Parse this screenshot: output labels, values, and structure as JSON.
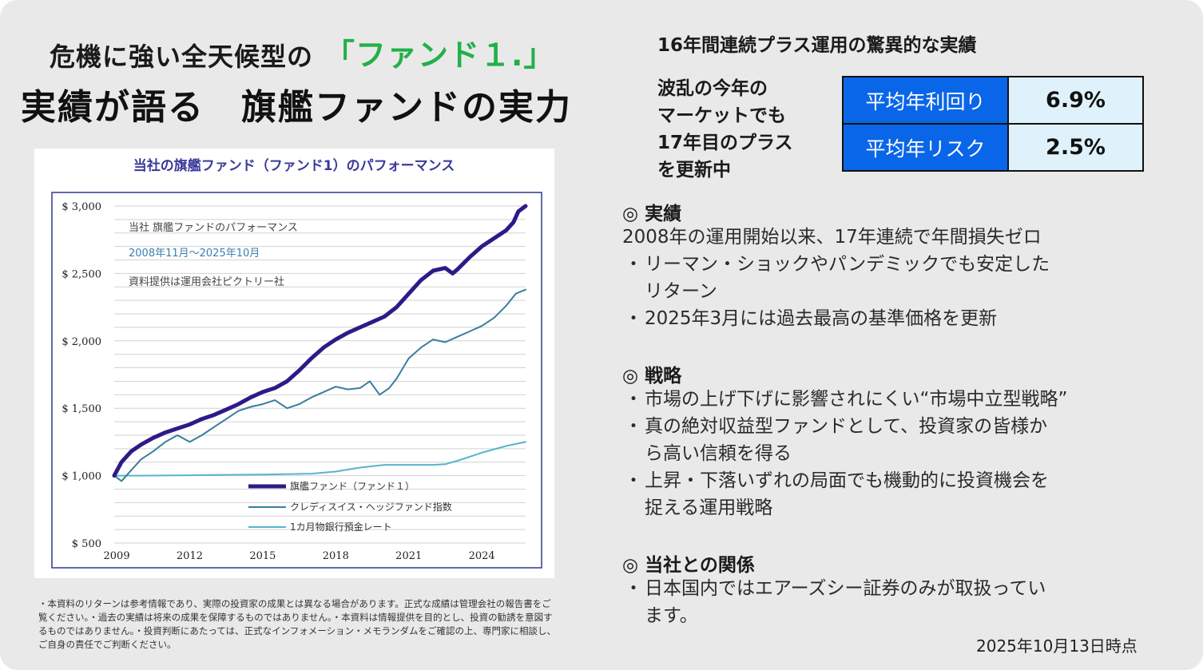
{
  "headline": {
    "line1_prefix": "危機に強い全天候型の",
    "line1_highlight": "「ファンド１.」",
    "line2": "実績が語る　旗艦ファンドの実力"
  },
  "chart_data": {
    "type": "line",
    "title": "当社の旗艦ファンド（ファンド1）のパフォーマンス",
    "annotations": [
      "当社 旗艦ファンドのパフォーマンス",
      "2008年11月～2025年10月",
      "資料提供は運用会社ピクトリー社"
    ],
    "y_ticks": [
      "$ 3,000",
      "$ 2,500",
      "$ 2,000",
      "$ 1,500",
      "$ 1,000",
      "$ 500"
    ],
    "y_tick_values": [
      3000,
      2500,
      2000,
      1500,
      1000,
      500
    ],
    "ylim": [
      500,
      3000
    ],
    "x_ticks": [
      "2009",
      "2012",
      "2015",
      "2018",
      "2021",
      "2024"
    ],
    "x_tick_values": [
      2009,
      2012,
      2015,
      2018,
      2021,
      2024
    ],
    "xlim": [
      2008.9,
      2025.8
    ],
    "grid": true,
    "legend_position": "bottom-center",
    "series": [
      {
        "name": "旗艦ファンド（ファンド１）",
        "color": "#2e1a87",
        "points": [
          [
            2008.9,
            1000
          ],
          [
            2009.2,
            1100
          ],
          [
            2009.6,
            1180
          ],
          [
            2010.0,
            1230
          ],
          [
            2010.5,
            1280
          ],
          [
            2011.0,
            1320
          ],
          [
            2011.5,
            1350
          ],
          [
            2012.0,
            1380
          ],
          [
            2012.5,
            1420
          ],
          [
            2013.0,
            1450
          ],
          [
            2013.5,
            1490
          ],
          [
            2014.0,
            1530
          ],
          [
            2014.5,
            1580
          ],
          [
            2015.0,
            1620
          ],
          [
            2015.5,
            1650
          ],
          [
            2016.0,
            1700
          ],
          [
            2016.5,
            1780
          ],
          [
            2017.0,
            1870
          ],
          [
            2017.5,
            1950
          ],
          [
            2018.0,
            2010
          ],
          [
            2018.5,
            2060
          ],
          [
            2019.0,
            2100
          ],
          [
            2019.5,
            2140
          ],
          [
            2020.0,
            2180
          ],
          [
            2020.5,
            2250
          ],
          [
            2021.0,
            2350
          ],
          [
            2021.5,
            2450
          ],
          [
            2022.0,
            2520
          ],
          [
            2022.5,
            2540
          ],
          [
            2022.8,
            2500
          ],
          [
            2023.0,
            2530
          ],
          [
            2023.5,
            2620
          ],
          [
            2024.0,
            2700
          ],
          [
            2024.5,
            2760
          ],
          [
            2025.0,
            2820
          ],
          [
            2025.3,
            2880
          ],
          [
            2025.5,
            2960
          ],
          [
            2025.8,
            3000
          ]
        ]
      },
      {
        "name": "クレディスイス・ヘッジファンド指数",
        "color": "#3a7d9c",
        "points": [
          [
            2008.9,
            1000
          ],
          [
            2009.2,
            960
          ],
          [
            2009.5,
            1020
          ],
          [
            2010.0,
            1120
          ],
          [
            2010.5,
            1180
          ],
          [
            2011.0,
            1250
          ],
          [
            2011.5,
            1300
          ],
          [
            2012.0,
            1250
          ],
          [
            2012.5,
            1300
          ],
          [
            2013.0,
            1360
          ],
          [
            2013.5,
            1420
          ],
          [
            2014.0,
            1480
          ],
          [
            2014.5,
            1510
          ],
          [
            2015.0,
            1530
          ],
          [
            2015.5,
            1560
          ],
          [
            2016.0,
            1500
          ],
          [
            2016.5,
            1530
          ],
          [
            2017.0,
            1580
          ],
          [
            2017.5,
            1620
          ],
          [
            2018.0,
            1660
          ],
          [
            2018.5,
            1640
          ],
          [
            2019.0,
            1650
          ],
          [
            2019.4,
            1700
          ],
          [
            2019.8,
            1600
          ],
          [
            2020.2,
            1650
          ],
          [
            2020.5,
            1720
          ],
          [
            2021.0,
            1870
          ],
          [
            2021.5,
            1950
          ],
          [
            2022.0,
            2010
          ],
          [
            2022.5,
            1990
          ],
          [
            2023.0,
            2030
          ],
          [
            2023.5,
            2070
          ],
          [
            2024.0,
            2110
          ],
          [
            2024.5,
            2170
          ],
          [
            2025.0,
            2260
          ],
          [
            2025.4,
            2350
          ],
          [
            2025.8,
            2380
          ]
        ]
      },
      {
        "name": "1カ月物銀行預金レート",
        "color": "#57b5cc",
        "points": [
          [
            2008.9,
            1000
          ],
          [
            2010.0,
            1000
          ],
          [
            2012.0,
            1003
          ],
          [
            2015.0,
            1008
          ],
          [
            2017.0,
            1015
          ],
          [
            2018.0,
            1030
          ],
          [
            2019.0,
            1060
          ],
          [
            2020.0,
            1080
          ],
          [
            2021.0,
            1080
          ],
          [
            2022.0,
            1080
          ],
          [
            2022.5,
            1085
          ],
          [
            2023.0,
            1110
          ],
          [
            2024.0,
            1170
          ],
          [
            2025.0,
            1220
          ],
          [
            2025.8,
            1250
          ]
        ]
      }
    ]
  },
  "disclaimer": "・本資料のリターンは参考情報であり、実際の投資家の成果とは異なる場合があります。正式な成績は管理会社の報告書をご覧ください。・過去の実績は将来の成果を保障するものではありません。・本資料は情報提供を目的とし、投資の勧誘を意図するものではありません。・投資判断にあたっては、正式なインフォメーション・メモランダムをご確認の上、専門家に相談し、ご自身の責任でご判断ください。",
  "right": {
    "title": "16年間連続プラス運用の驚異的な実績",
    "side_note": "波乱の今年の\nマーケットでも\n17年目のプラス\nを更新中",
    "stats": [
      {
        "label": "平均年利回り",
        "value": "6.9%"
      },
      {
        "label": "平均年リスク",
        "value": "2.5%"
      }
    ],
    "sections": [
      {
        "heading": "◎ 実績",
        "intro": "2008年の運用開始以来、17年連続で年間損失ゼロ",
        "bullets": [
          [
            "リーマン・ショックやパンデミックでも安定した",
            "リターン"
          ],
          [
            "2025年3月には過去最高の基準価格を更新"
          ]
        ]
      },
      {
        "heading": "◎ 戦略",
        "bullets": [
          [
            "市場の上げ下げに影響されにくい“市場中立型戦略”"
          ],
          [
            "真の絶対収益型ファンドとして、投資家の皆様か",
            "ら高い信頼を得る"
          ],
          [
            "上昇・下落いずれの局面でも機動的に投資機会を",
            "捉える運用戦略"
          ]
        ]
      },
      {
        "heading": "◎ 当社との関係",
        "bullets": [
          [
            "日本国内ではエアーズシー証券のみが取扱ってい",
            "ます。"
          ]
        ]
      }
    ],
    "bullet_mark": "・",
    "date": "2025年10月13日時点"
  }
}
